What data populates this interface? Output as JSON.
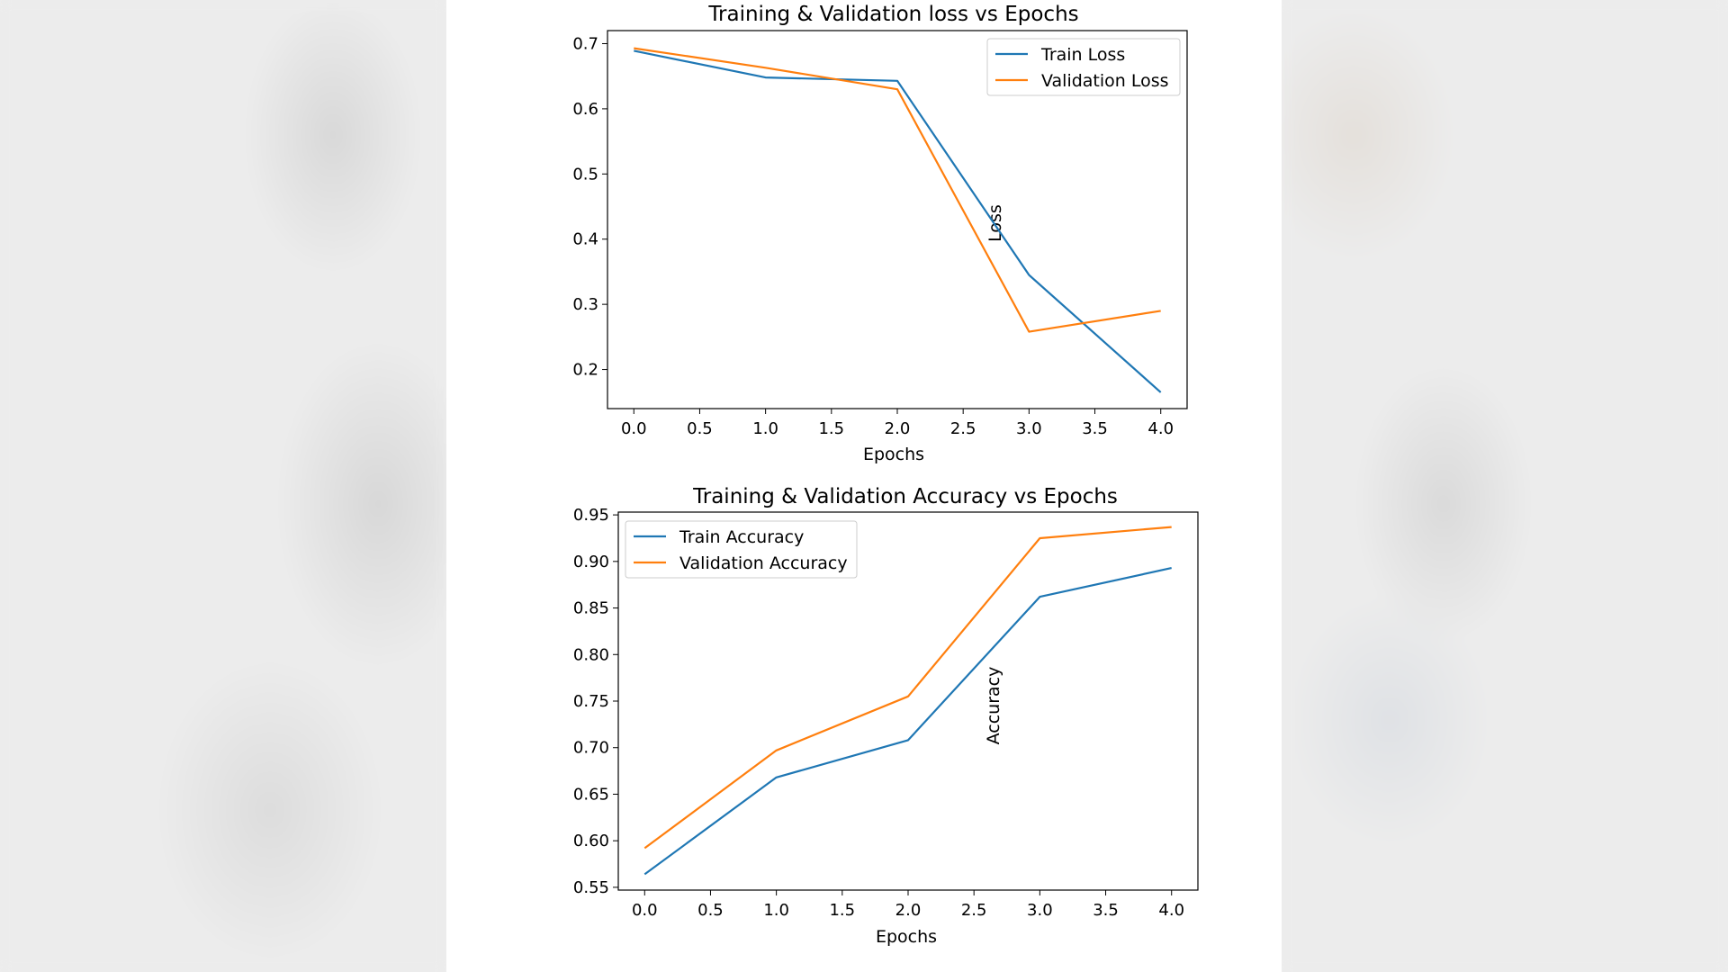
{
  "chart_data": [
    {
      "type": "line",
      "title": "Training & Validation loss vs Epochs",
      "xlabel": "Epochs",
      "ylabel": "Loss",
      "xlim": [
        -0.2,
        4.2
      ],
      "ylim": [
        0.14,
        0.72
      ],
      "xticks": [
        "0.0",
        "0.5",
        "1.0",
        "1.5",
        "2.0",
        "2.5",
        "3.0",
        "3.5",
        "4.0"
      ],
      "yticks": [
        "0.2",
        "0.3",
        "0.4",
        "0.5",
        "0.6",
        "0.7"
      ],
      "legend_position": "top-right",
      "x": [
        0,
        1,
        2,
        3,
        4
      ],
      "series": [
        {
          "name": "Train Loss",
          "color": "#1f77b4",
          "values": [
            0.689,
            0.648,
            0.643,
            0.345,
            0.165
          ]
        },
        {
          "name": "Validation Loss",
          "color": "#ff7f0e",
          "values": [
            0.693,
            0.663,
            0.63,
            0.258,
            0.29
          ]
        }
      ]
    },
    {
      "type": "line",
      "title": "Training & Validation Accuracy vs Epochs",
      "xlabel": "Epochs",
      "ylabel": "Accuracy",
      "xlim": [
        -0.2,
        4.2
      ],
      "ylim": [
        0.547,
        0.953
      ],
      "xticks": [
        "0.0",
        "0.5",
        "1.0",
        "1.5",
        "2.0",
        "2.5",
        "3.0",
        "3.5",
        "4.0"
      ],
      "yticks": [
        "0.55",
        "0.60",
        "0.65",
        "0.70",
        "0.75",
        "0.80",
        "0.85",
        "0.90",
        "0.95"
      ],
      "legend_position": "top-left",
      "x": [
        0,
        1,
        2,
        3,
        4
      ],
      "series": [
        {
          "name": "Train Accuracy",
          "color": "#1f77b4",
          "values": [
            0.564,
            0.668,
            0.708,
            0.862,
            0.893
          ]
        },
        {
          "name": "Validation Accuracy",
          "color": "#ff7f0e",
          "values": [
            0.592,
            0.697,
            0.755,
            0.925,
            0.937
          ]
        }
      ]
    }
  ]
}
